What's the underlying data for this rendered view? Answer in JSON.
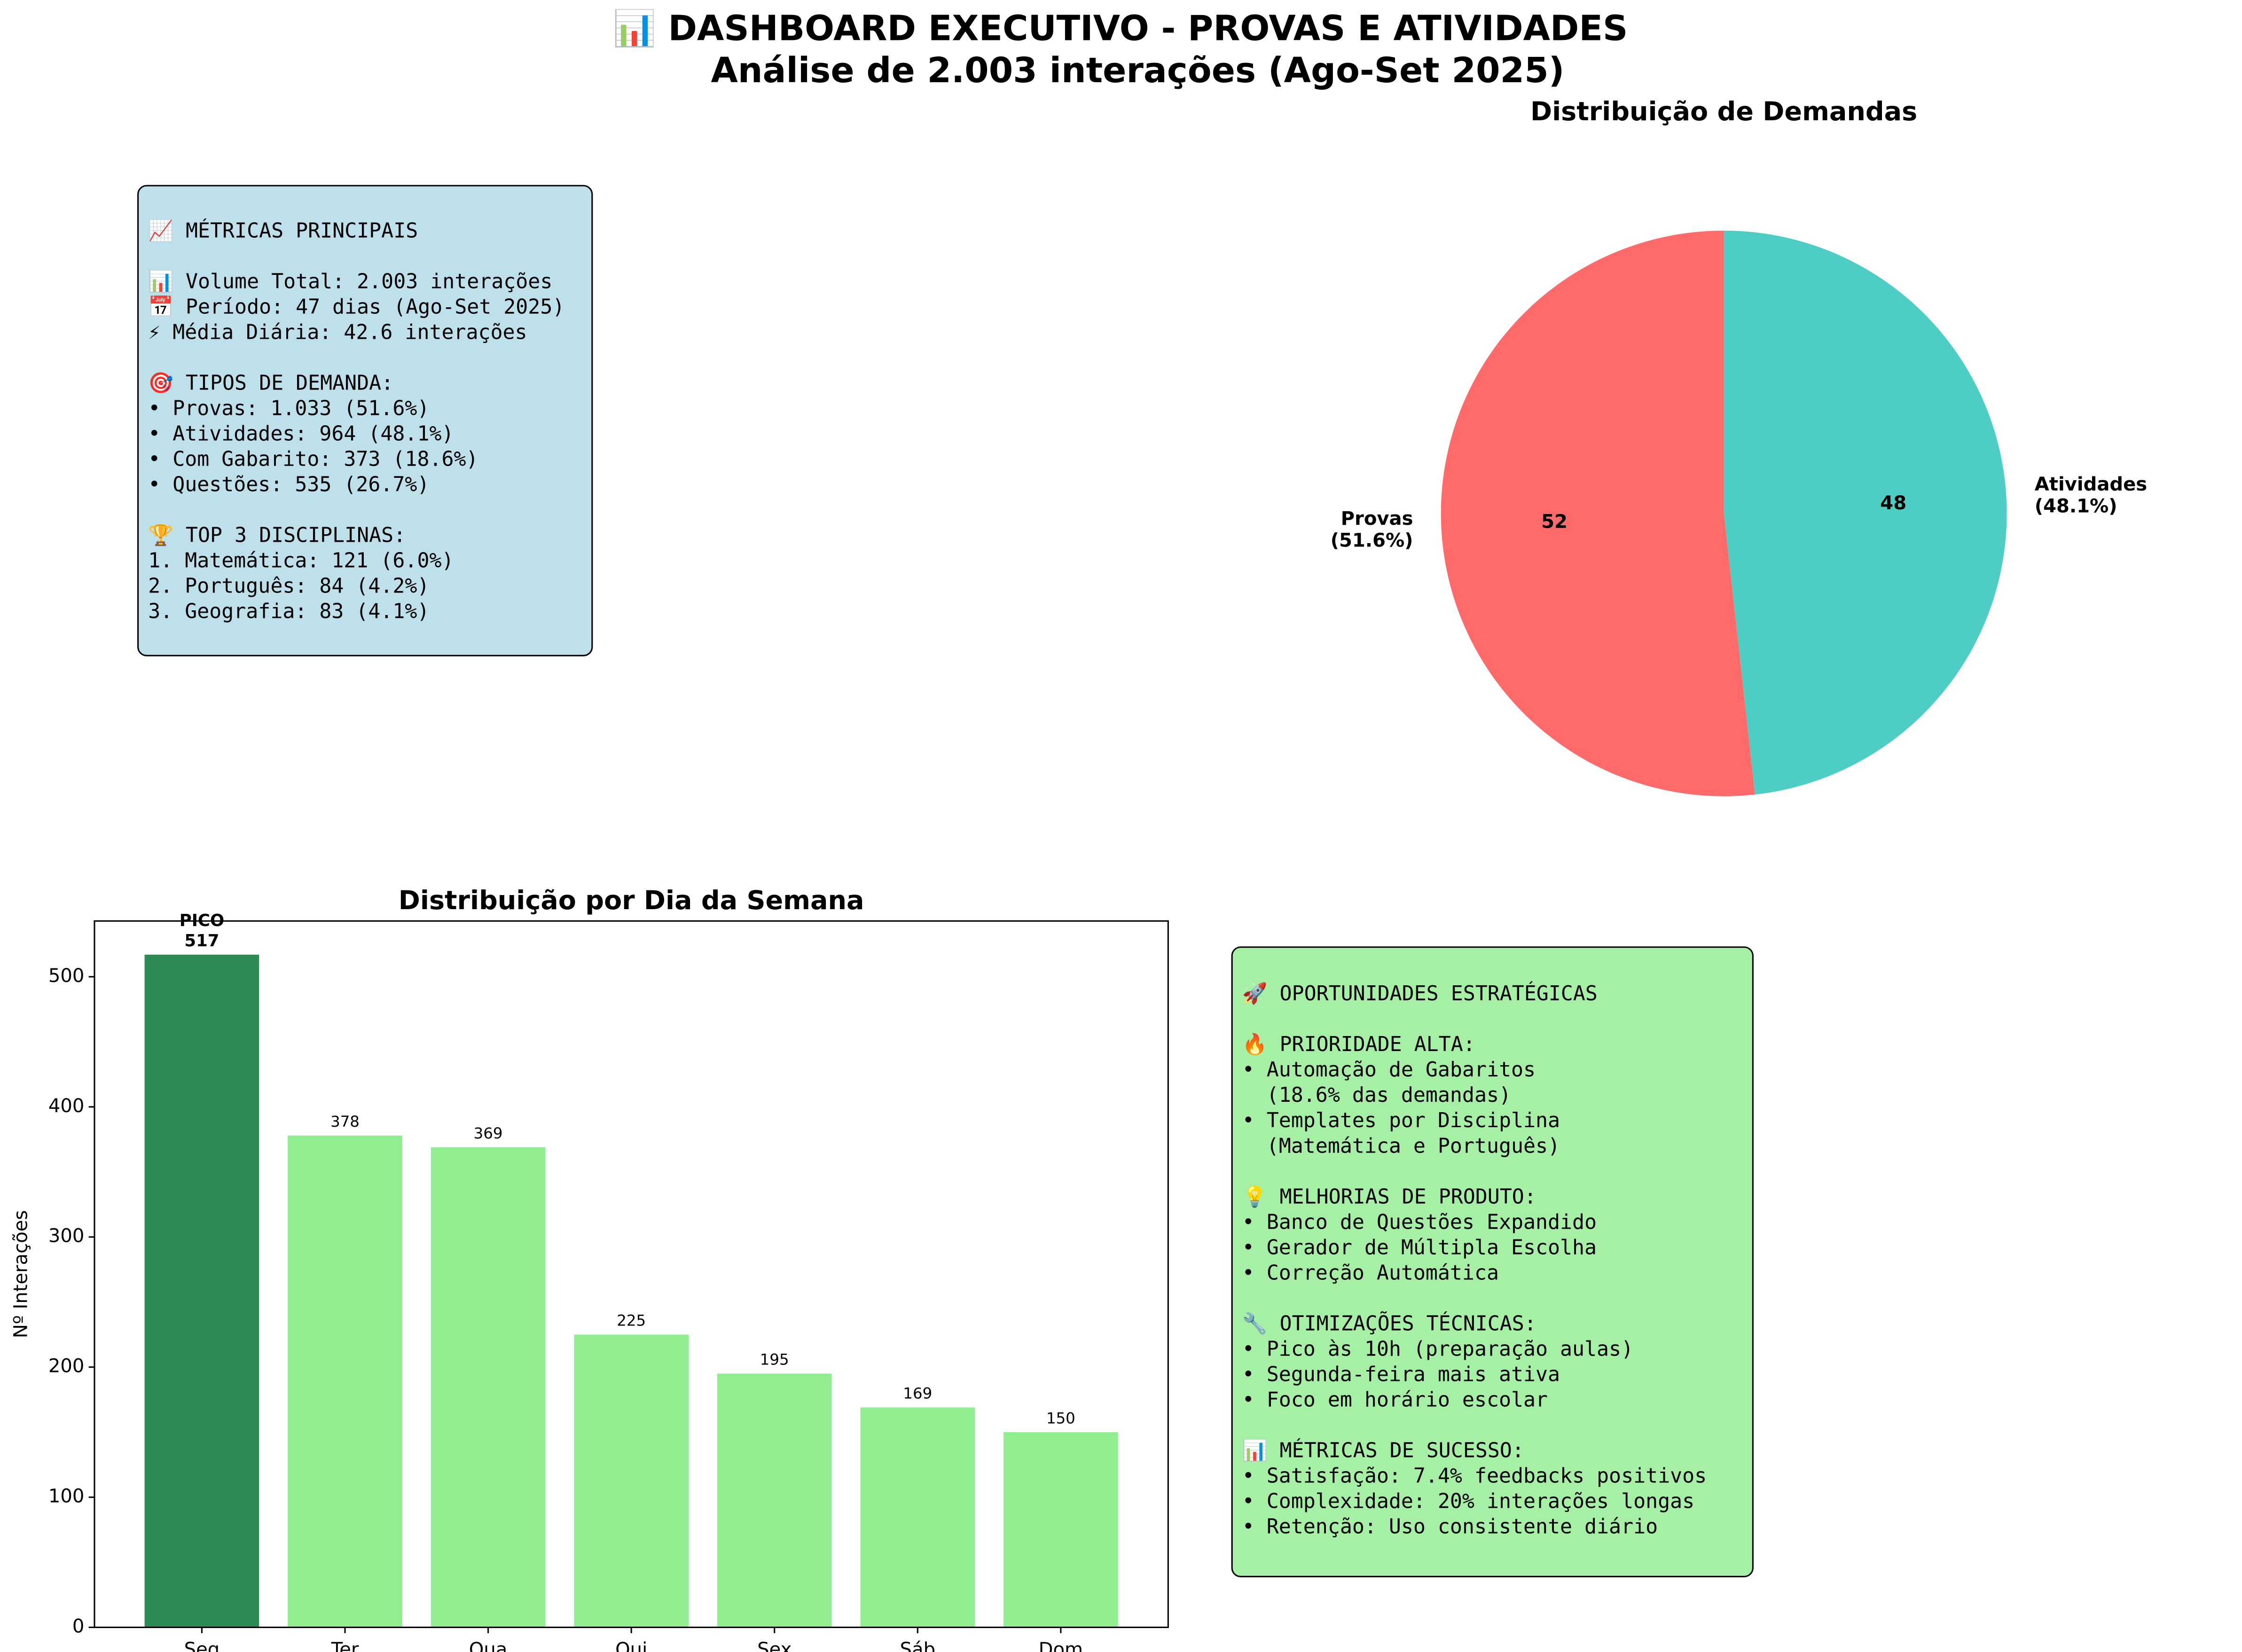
{
  "title": "📊 DASHBOARD EXECUTIVO - PROVAS E ATIVIDADES",
  "subtitle": "Análise de 2.003 interações (Ago-Set 2025)",
  "metrics_box": {
    "sections": [
      [
        "📈 MÉTRICAS PRINCIPAIS"
      ],
      [
        "📊 Volume Total: 2.003 interações",
        "📅 Período: 47 dias (Ago-Set 2025)",
        "⚡ Média Diária: 42.6 interações"
      ],
      [
        "🎯 TIPOS DE DEMANDA:",
        "• Provas: 1.033 (51.6%)",
        "• Atividades: 964 (48.1%)",
        "• Com Gabarito: 373 (18.6%)",
        "• Questões: 535 (26.7%)"
      ],
      [
        "🏆 TOP 3 DISCIPLINAS:",
        "1. Matemática: 121 (6.0%)",
        "2. Português: 84 (4.2%)",
        "3. Geografia: 83 (4.1%)"
      ]
    ]
  },
  "opportunities_box": {
    "sections": [
      [
        "🚀 OPORTUNIDADES ESTRATÉGICAS"
      ],
      [
        "🔥 PRIORIDADE ALTA:",
        "• Automação de Gabaritos",
        "  (18.6% das demandas)",
        "• Templates por Disciplina",
        "  (Matemática e Português)"
      ],
      [
        "💡 MELHORIAS DE PRODUTO:",
        "• Banco de Questões Expandido",
        "• Gerador de Múltipla Escolha",
        "• Correção Automática"
      ],
      [
        "🔧 OTIMIZAÇÕES TÉCNICAS:",
        "• Pico às 10h (preparação aulas)",
        "• Segunda-feira mais ativa",
        "• Foco em horário escolar"
      ],
      [
        "📊 MÉTRICAS DE SUCESSO:",
        "• Satisfação: 7.4% feedbacks positivos",
        "• Complexidade: 20% interações longas",
        "• Retenção: Uso consistente diário"
      ]
    ]
  },
  "chart_data": [
    {
      "type": "pie",
      "title": "Distribuição de Demandas",
      "categories": [
        "Provas\n(51.6%)",
        "Atividades\n(48.1%)"
      ],
      "values": [
        51.6,
        48.1
      ],
      "value_labels": [
        "52",
        "48"
      ],
      "colors": [
        "#ff6b6b",
        "#4ecdc4"
      ]
    },
    {
      "type": "bar",
      "title": "Distribuição por Dia da Semana",
      "ylabel": "Nº Interações",
      "categories": [
        "Seg",
        "Ter",
        "Qua",
        "Qui",
        "Sex",
        "Sáb",
        "Dom"
      ],
      "values": [
        517,
        378,
        369,
        225,
        195,
        169,
        150
      ],
      "value_labels": [
        "PICO\n517",
        "378",
        "369",
        "225",
        "195",
        "169",
        "150"
      ],
      "colors": [
        "#2e8b57",
        "#90ee90",
        "#90ee90",
        "#90ee90",
        "#90ee90",
        "#90ee90",
        "#90ee90"
      ],
      "ylim": [
        0,
        542.85
      ],
      "yticks": [
        0,
        100,
        200,
        300,
        400,
        500
      ]
    }
  ]
}
